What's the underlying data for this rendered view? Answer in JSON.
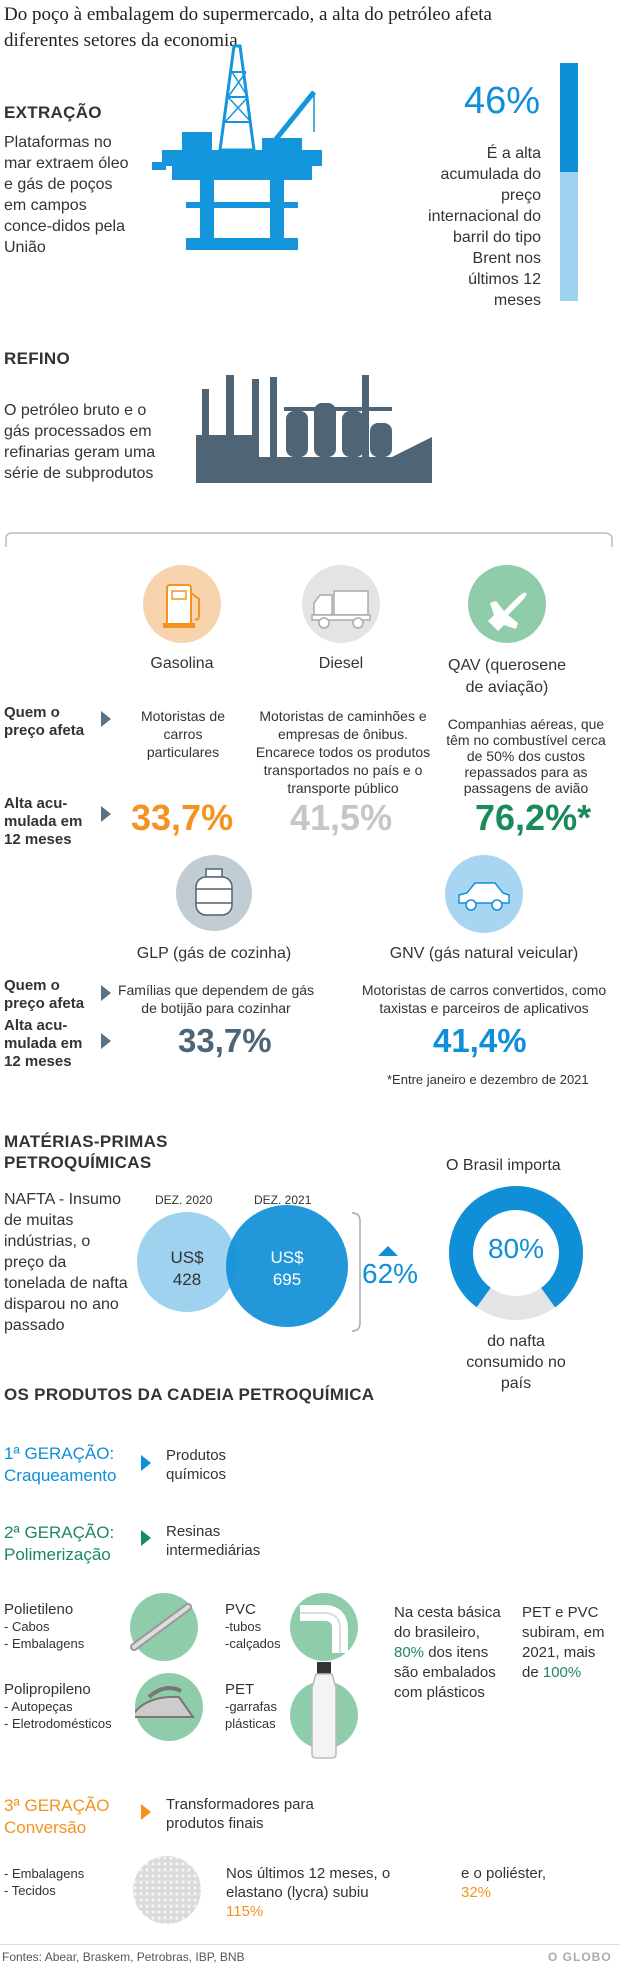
{
  "header": {
    "title": "Do poço à embalagem do supermercado, a alta do petróleo afeta diferentes setores da economia"
  },
  "extracao": {
    "heading": "EXTRAÇÃO",
    "text": "Plataformas no mar extraem óleo e gás de poços em campos conce-didos pela União",
    "stat_value": "46%",
    "stat_text": "É a alta acumulada do preço internacional do barril do tipo Brent nos últimos 12 meses",
    "stat_fraction": 0.46
  },
  "refino": {
    "heading": "REFINO",
    "text": "O petróleo bruto e o gás processados em refinarias geram uma série de subprodutos"
  },
  "fuels": {
    "row_label_afeta": "Quem o preço afeta",
    "row_label_alta": "Alta acumulada em 12 meses",
    "row_label_afeta_a": "Quem o",
    "row_label_afeta_b": "preço afeta",
    "row_label_alta_a": "Alta acu-",
    "row_label_alta_b": "mulada em",
    "row_label_alta_c": "12 meses",
    "gasolina": {
      "name": "Gasolina",
      "who": "Motoristas de carros particulares",
      "value": "33,7%",
      "icon": "fuel-pump-icon"
    },
    "diesel": {
      "name": "Diesel",
      "who": "Motoristas de caminhões e empresas de ônibus. Encarece todos os produtos transportados no país e o transporte público",
      "value": "41,5%",
      "icon": "truck-icon"
    },
    "qav": {
      "name": "QAV (querosene de aviação)",
      "who": "Companhias aéreas, que têm no combustível cerca de 50% dos custos repassados para as passagens de avião",
      "value": "76,2%*",
      "icon": "airplane-icon"
    },
    "glp": {
      "name": "GLP (gás de cozinha)",
      "who": "Famílias que dependem de gás de botijão para cozinhar",
      "value": "33,7%",
      "icon": "gas-cylinder-icon"
    },
    "gnv": {
      "name": "GNV (gás natural veicular)",
      "who": "Motoristas de carros convertidos, como taxistas e parceiros de aplicativos",
      "value": "41,4%",
      "icon": "car-icon"
    },
    "footnote": "*Entre janeiro e dezembro de 2021"
  },
  "materias": {
    "heading_a": "MATÉRIAS-PRIMAS",
    "heading_b": "PETROQUÍMICAS",
    "nafta_text": "NAFTA - Insumo de muitas indústrias, o preço da tonelada de nafta disparou no ano passado",
    "dez2020_label": "DEZ. 2020",
    "dez2020_value_a": "US$",
    "dez2020_value_b": "428",
    "dez2021_label": "DEZ. 2021",
    "dez2021_value_a": "US$",
    "dez2021_value_b": "695",
    "increase": "62%",
    "import_label": "O Brasil importa",
    "import_value": "80%",
    "import_fraction": 0.8,
    "import_text": "do nafta consumido no país"
  },
  "produtos": {
    "heading": "OS PRODUTOS DA CADEIA PETROQUÍMICA",
    "gen1_a": "1ª GERAÇÃO:",
    "gen1_b": "Craqueamento",
    "gen1_desc": "Produtos químicos",
    "gen2_a": "2ª GERAÇÃO:",
    "gen2_b": "Polimerização",
    "gen2_desc": "Resinas intermediárias",
    "polietileno": "Polietileno",
    "polietileno_items": [
      "- Cabos",
      "- Embalagens"
    ],
    "pvc": "PVC",
    "pvc_items": [
      "-tubos",
      "-calçados"
    ],
    "polipropileno": "Polipropileno",
    "polipropileno_items": [
      "- Autopeças",
      "- Eletrodomésticos"
    ],
    "pet": "PET",
    "pet_items": [
      "-garrafas",
      "plásticas"
    ],
    "cesta_a": "Na cesta básica do brasileiro,",
    "cesta_pct": "80%",
    "cesta_b": "dos itens são embalados com plásticos",
    "petpvc_a": "PET e PVC subiram, em 2021, mais de",
    "petpvc_pct": "100%",
    "gen3_a": "3ª GERAÇÃO",
    "gen3_b": "Conversão",
    "gen3_desc": "Transformadores para produtos finais",
    "gen3_items": [
      "- Embalagens",
      "- Tecidos"
    ],
    "elastano_text": "Nos últimos 12 meses, o elastano (lycra) subiu",
    "elastano_pct": "115%",
    "poliester_text": "e o poliéster,",
    "poliester_pct": "32%"
  },
  "footer": {
    "sources": "Fontes:  Abear, Braskem, Petrobras, IBP, BNB",
    "brand": "O GLOBO"
  },
  "colors": {
    "blue": "#0f8fd8",
    "light_blue": "#9fd2ef",
    "green": "#1b8a5a",
    "orange": "#f39321",
    "grey": "#c4c6c8",
    "slate": "#4f6475"
  }
}
